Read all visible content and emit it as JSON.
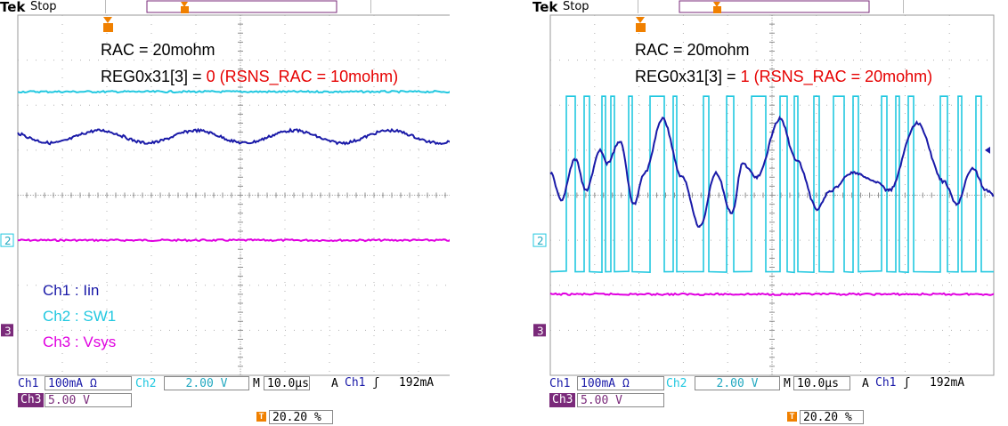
{
  "chart_data": [
    {
      "type": "line",
      "title": "",
      "annotations": {
        "line1": "RAC = 20mohm",
        "line2_prefix": "REG0x31[3] = ",
        "line2_red": "0 (RSNS_RAC = 10mohm)"
      },
      "legend": [
        "Ch1 : Iin",
        "Ch2 : SW1",
        "Ch3 : Vsys"
      ],
      "series": [
        {
          "name": "Ch1 : Iin",
          "color": "#1a1aa8",
          "shape": "slow ripple",
          "level_div": 1.3,
          "amplitude_div": 0.12
        },
        {
          "name": "Ch2 : SW1",
          "color": "#22c8e0",
          "shape": "flat",
          "level_div": 2.3
        },
        {
          "name": "Ch3 : Vsys",
          "color": "#e000e0",
          "shape": "flat",
          "level_div": -1.0
        }
      ],
      "status": {
        "header": "Stop",
        "ch1_label": "Ch1",
        "ch1_scale": "100mA Ω",
        "ch2_label": "Ch2",
        "ch2_scale": "2.00 V",
        "ch3_label": "Ch3",
        "ch3_scale": "5.00 V",
        "timebase": "10.0µs",
        "time_prefix": "M",
        "trigger_mode": "A",
        "trigger_source": "Ch1",
        "trigger_level": "192mA",
        "trigger_pos": "20.20 %"
      }
    },
    {
      "type": "line",
      "title": "",
      "annotations": {
        "line1": "RAC = 20mohm",
        "line2_prefix": "REG0x31[3] = ",
        "line2_red": "1 (RSNS_RAC = 20mohm)"
      },
      "legend": [],
      "series": [
        {
          "name": "Ch1 : Iin",
          "color": "#1a1aa8",
          "shape": "large oscillation",
          "level_div": 0.2,
          "amplitude_div": 1.0
        },
        {
          "name": "Ch2 : SW1",
          "color": "#22c8e0",
          "shape": "switching pulses",
          "low_div": -1.7,
          "high_div": 2.2
        },
        {
          "name": "Ch3 : Vsys",
          "color": "#e000e0",
          "shape": "flat",
          "level_div": -2.2
        }
      ],
      "status": {
        "header": "Stop",
        "ch1_label": "Ch1",
        "ch1_scale": "100mA Ω",
        "ch2_label": "Ch2",
        "ch2_scale": "2.00 V",
        "ch3_label": "Ch3",
        "ch3_scale": "5.00 V",
        "timebase": "10.0µs",
        "time_prefix": "M",
        "trigger_mode": "A",
        "trigger_source": "Ch1",
        "trigger_level": "192mA",
        "trigger_pos": "20.20 %"
      }
    }
  ],
  "brand": "Tek",
  "ch2_marker": "2",
  "ch3_marker": "3",
  "trigger_marker": "T",
  "colors": {
    "ch1": "#1a1aa8",
    "ch2": "#22c8e0",
    "ch3": "#e000e0",
    "annotation_red": "#e60000",
    "trigger": "#f08000",
    "ch3_badge": "#7a2a7a"
  }
}
